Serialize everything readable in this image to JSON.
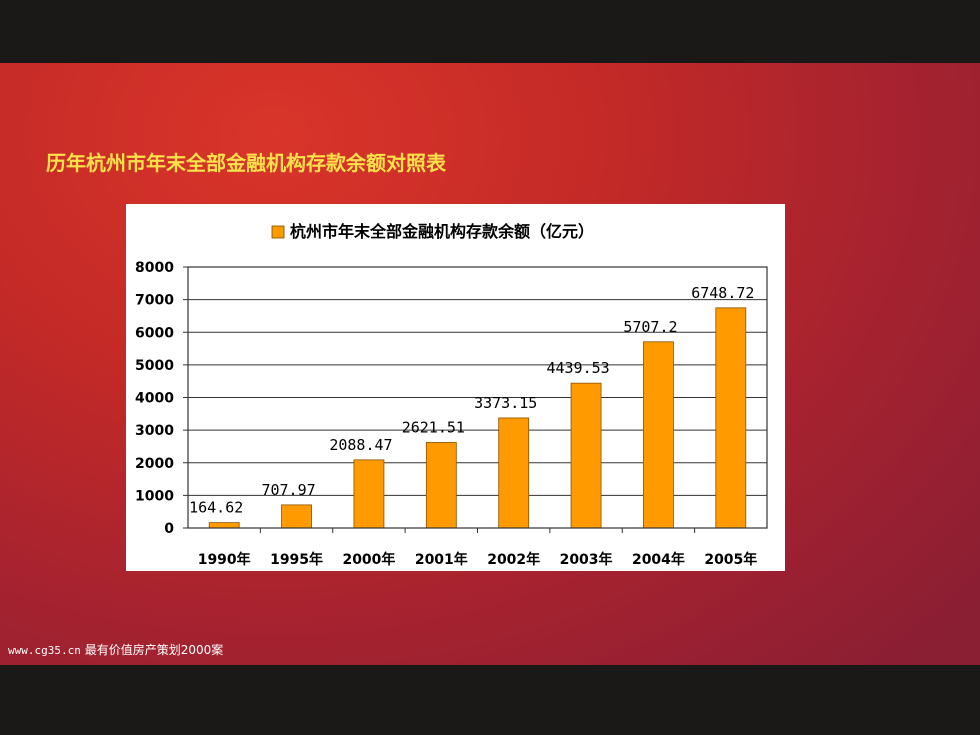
{
  "slide": {
    "title": "历年杭州市年末全部金融机构存款余额对照表",
    "footer_url": "www.cg35.cn",
    "footer_text": "最有价值房产策划2000案"
  },
  "chart_data": {
    "type": "bar",
    "title": "",
    "legend": "杭州市年末全部金融机构存款余额（亿元）",
    "legend_placement": "top",
    "categories": [
      "1990年",
      "1995年",
      "2000年",
      "2001年",
      "2002年",
      "2003年",
      "2004年",
      "2005年"
    ],
    "values": [
      164.62,
      707.97,
      2088.47,
      2621.51,
      3373.15,
      4439.53,
      5707.2,
      6748.72
    ],
    "data_labels": [
      "164.62",
      "707.97",
      "2088.47",
      "2621.51",
      "3373.15",
      "4439.53",
      "5707.2",
      "6748.72"
    ],
    "ylim": [
      0,
      8000
    ],
    "yticks": [
      0,
      1000,
      2000,
      3000,
      4000,
      5000,
      6000,
      7000,
      8000
    ],
    "grid": true,
    "bar_color": "#ff9a00",
    "xlabel": "",
    "ylabel": ""
  }
}
